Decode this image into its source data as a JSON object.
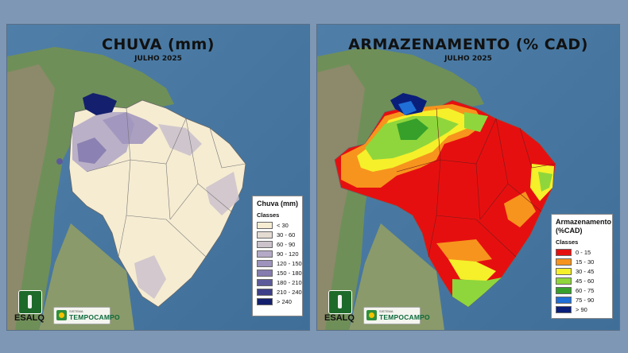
{
  "maps": [
    {
      "title": "CHUVA (mm)",
      "subtitle": "JULHO 2025",
      "legend": {
        "title": "Chuva (mm)",
        "classes_label": "Classes",
        "items": [
          {
            "label": "< 30",
            "color": "#f6ecd2"
          },
          {
            "label": "30 - 60",
            "color": "#e4dbd3"
          },
          {
            "label": "60 - 90",
            "color": "#cbc2cc"
          },
          {
            "label": "90 - 120",
            "color": "#b4aac7"
          },
          {
            "label": "120 - 150",
            "color": "#9d93bc"
          },
          {
            "label": "150 - 180",
            "color": "#867caf"
          },
          {
            "label": "180 - 210",
            "color": "#5d5a9b"
          },
          {
            "label": "210 - 240",
            "color": "#3d3f88"
          },
          {
            "label": "> 240",
            "color": "#14206d"
          }
        ]
      },
      "logos": {
        "esalq": "ESALQ",
        "tempocampo_small": "SISTEMA",
        "tempocampo": "TEMPOCAMPO"
      }
    },
    {
      "title": "ARMAZENAMENTO (% CAD)",
      "subtitle": "JULHO 2025",
      "legend": {
        "title": "Armazenamento (%CAD)",
        "classes_label": "Classes",
        "items": [
          {
            "label": "0 - 15",
            "color": "#e60f0f"
          },
          {
            "label": "15 - 30",
            "color": "#f7941d"
          },
          {
            "label": "30 - 45",
            "color": "#f5f02a"
          },
          {
            "label": "45 - 60",
            "color": "#8fd63c"
          },
          {
            "label": "60 - 75",
            "color": "#36a02b"
          },
          {
            "label": "75 - 90",
            "color": "#1f6fd6"
          },
          {
            "label": "> 90",
            "color": "#0a1f7a"
          }
        ]
      },
      "logos": {
        "esalq": "ESALQ",
        "tempocampo_small": "SISTEMA",
        "tempocampo": "TEMPOCAMPO"
      }
    }
  ]
}
